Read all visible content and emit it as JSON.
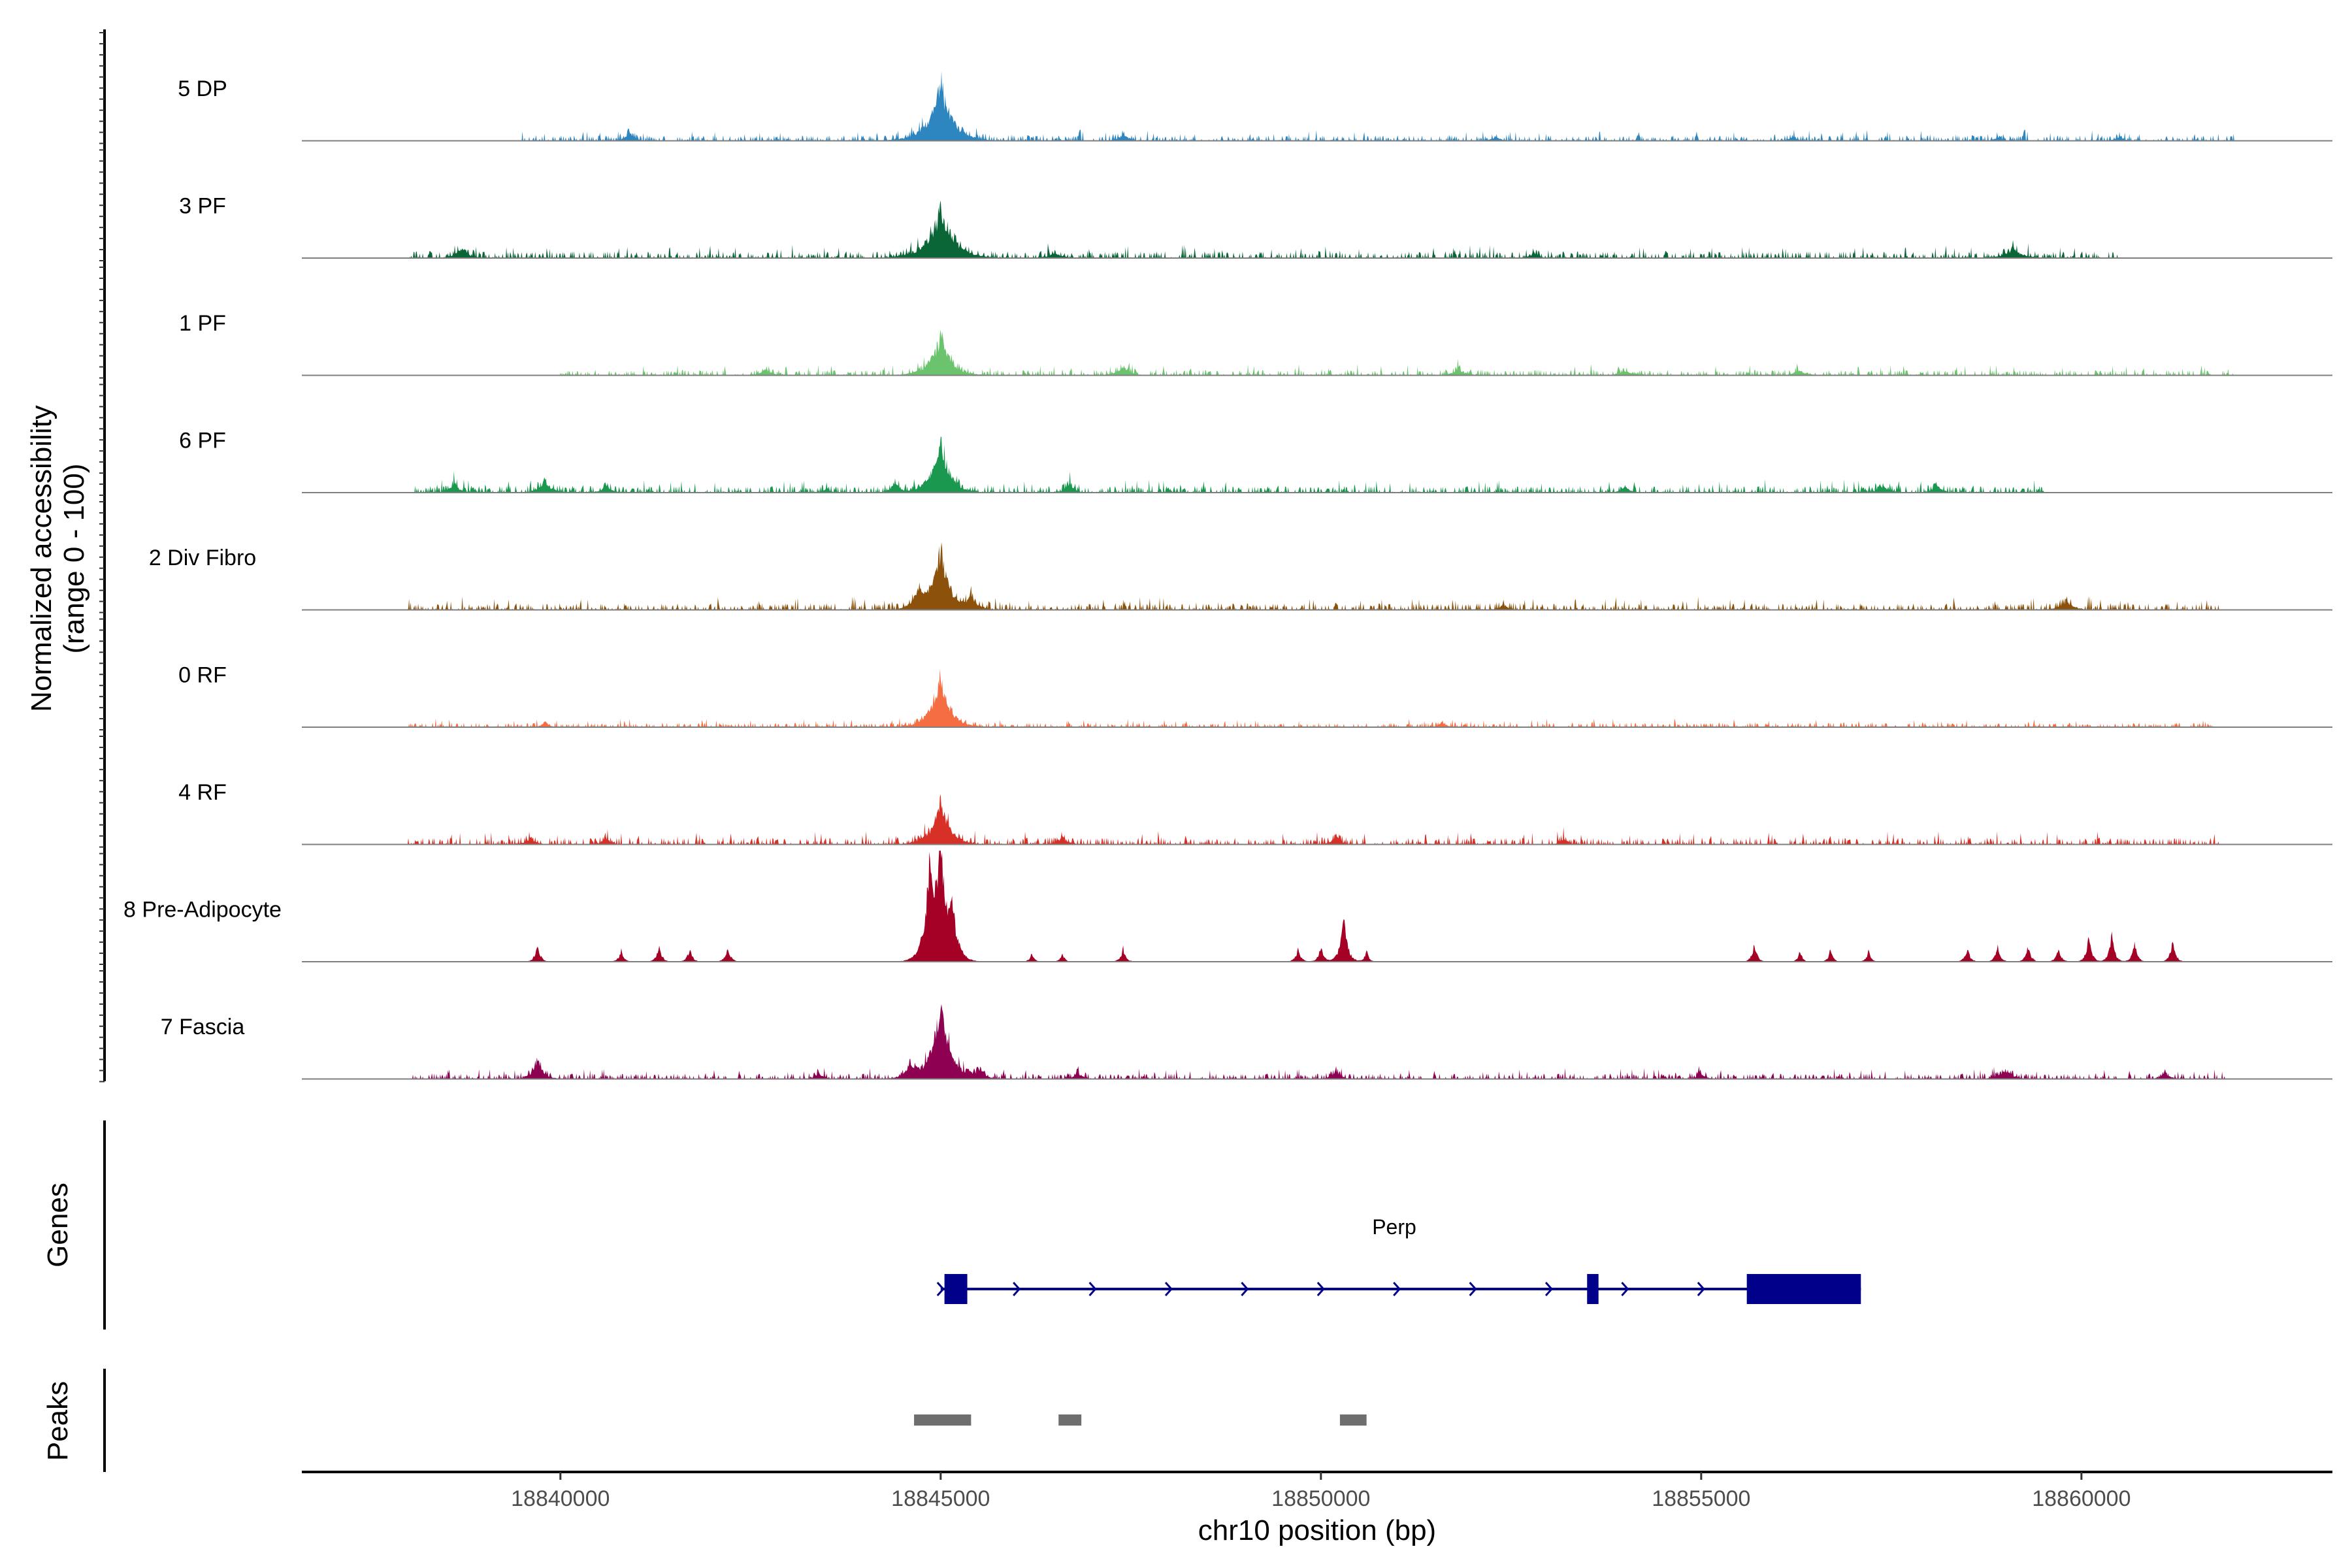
{
  "chart_data": {
    "type": "area",
    "title": "",
    "ylabel": "Normalized accessibility\n(range 0 - 100)",
    "xlabel": "chr10 position (bp)",
    "xlim": [
      18836600,
      18863300
    ],
    "ylim": [
      0,
      100
    ],
    "x_ticks": [
      18840000,
      18845000,
      18850000,
      18855000,
      18860000
    ],
    "x_tick_labels": [
      "18840000",
      "18845000",
      "18850000",
      "18855000",
      "18860000"
    ],
    "tracks": [
      {
        "name": "5 DP",
        "color": "#2E86C1",
        "noise": 5,
        "noise_start": 18839500,
        "noise_end": 18862000,
        "peaks": [
          [
            18845000,
            50,
            250
          ],
          [
            18840900,
            8,
            100
          ],
          [
            18847400,
            6,
            120
          ],
          [
            18852300,
            4,
            100
          ],
          [
            18856200,
            4,
            100
          ],
          [
            18858900,
            3,
            100
          ],
          [
            18860500,
            4,
            100
          ]
        ]
      },
      {
        "name": "3 PF",
        "color": "#0A6637",
        "noise": 6,
        "noise_start": 18838000,
        "noise_end": 18860500,
        "peaks": [
          [
            18845000,
            42,
            280
          ],
          [
            18838700,
            8,
            150
          ],
          [
            18846500,
            5,
            150
          ],
          [
            18852800,
            5,
            100
          ],
          [
            18859100,
            8,
            200
          ]
        ]
      },
      {
        "name": "1 PF",
        "color": "#6BC46D",
        "noise": 5,
        "noise_start": 18840000,
        "noise_end": 18862000,
        "peaks": [
          [
            18845000,
            34,
            220
          ],
          [
            18842700,
            6,
            120
          ],
          [
            18847400,
            8,
            150
          ],
          [
            18851800,
            5,
            150
          ],
          [
            18854000,
            4,
            150
          ],
          [
            18856300,
            4,
            150
          ]
        ]
      },
      {
        "name": "6 PF",
        "color": "#1A9850",
        "noise": 6,
        "noise_start": 18838000,
        "noise_end": 18859500,
        "peaks": [
          [
            18845000,
            45,
            200
          ],
          [
            18844400,
            10,
            90
          ],
          [
            18838600,
            8,
            120
          ],
          [
            18839800,
            10,
            150
          ],
          [
            18840600,
            6,
            120
          ],
          [
            18843500,
            4,
            80
          ],
          [
            18846700,
            8,
            100
          ],
          [
            18854000,
            6,
            100
          ],
          [
            18857400,
            6,
            130
          ],
          [
            18858100,
            8,
            100
          ]
        ]
      },
      {
        "name": "2 Div Fibro",
        "color": "#8C510A",
        "noise": 6,
        "noise_start": 18838000,
        "noise_end": 18861800,
        "peaks": [
          [
            18845000,
            55,
            180
          ],
          [
            18844700,
            18,
            120
          ],
          [
            18845400,
            10,
            150
          ],
          [
            18852400,
            6,
            90
          ],
          [
            18859800,
            8,
            150
          ]
        ]
      },
      {
        "name": "0 RF",
        "color": "#F46D43",
        "noise": 4,
        "noise_start": 18838000,
        "noise_end": 18861800,
        "peaks": [
          [
            18845000,
            46,
            200
          ],
          [
            18839800,
            5,
            80
          ],
          [
            18851600,
            5,
            80
          ]
        ]
      },
      {
        "name": "4 RF",
        "color": "#D73027",
        "noise": 6,
        "noise_start": 18838000,
        "noise_end": 18861800,
        "peaks": [
          [
            18845000,
            38,
            200
          ],
          [
            18839600,
            6,
            120
          ],
          [
            18840600,
            6,
            100
          ],
          [
            18846600,
            7,
            120
          ],
          [
            18850200,
            8,
            100
          ],
          [
            18853200,
            5,
            100
          ]
        ]
      },
      {
        "name": "8 Pre-Adipocyte",
        "color": "#A50026",
        "noise": 0,
        "noise_start": 18838000,
        "noise_end": 18861800,
        "peaks": [
          [
            18845000,
            100,
            120
          ],
          [
            18844850,
            70,
            120
          ],
          [
            18845150,
            40,
            120
          ],
          [
            18839700,
            16,
            60
          ],
          [
            18840800,
            10,
            60
          ],
          [
            18841300,
            14,
            60
          ],
          [
            18841700,
            12,
            60
          ],
          [
            18842200,
            14,
            60
          ],
          [
            18846200,
            8,
            50
          ],
          [
            18846600,
            8,
            50
          ],
          [
            18847400,
            12,
            60
          ],
          [
            18849700,
            12,
            60
          ],
          [
            18850000,
            14,
            60
          ],
          [
            18850300,
            40,
            80
          ],
          [
            18850600,
            10,
            50
          ],
          [
            18855700,
            16,
            60
          ],
          [
            18856300,
            10,
            50
          ],
          [
            18856700,
            12,
            50
          ],
          [
            18857200,
            10,
            50
          ],
          [
            18858500,
            12,
            60
          ],
          [
            18858900,
            14,
            60
          ],
          [
            18859300,
            14,
            60
          ],
          [
            18859700,
            12,
            60
          ],
          [
            18860100,
            24,
            60
          ],
          [
            18860400,
            26,
            60
          ],
          [
            18860700,
            16,
            60
          ],
          [
            18861200,
            20,
            60
          ]
        ]
      },
      {
        "name": "7 Fascia",
        "color": "#8E0152",
        "noise": 5,
        "noise_start": 18838000,
        "noise_end": 18861900,
        "peaks": [
          [
            18845000,
            65,
            200
          ],
          [
            18844600,
            12,
            120
          ],
          [
            18845500,
            8,
            120
          ],
          [
            18839700,
            18,
            120
          ],
          [
            18843400,
            6,
            100
          ],
          [
            18846800,
            6,
            100
          ],
          [
            18850200,
            8,
            100
          ],
          [
            18855000,
            5,
            100
          ],
          [
            18859000,
            8,
            150
          ],
          [
            18861100,
            6,
            100
          ]
        ]
      }
    ],
    "genes": {
      "panel_title": "Genes",
      "name": "Perp",
      "strand": "+",
      "color": "#00008B",
      "start": 18845000,
      "end": 18857100,
      "exons": [
        [
          18845050,
          18845350
        ],
        [
          18853500,
          18853650
        ],
        [
          18855600,
          18857100
        ]
      ],
      "arrow_positions": [
        18845000,
        18846000,
        18847000,
        18848000,
        18849000,
        18850000,
        18851000,
        18852000,
        18853000,
        18854000,
        18855000
      ]
    },
    "peaks": {
      "panel_title": "Peaks",
      "color": "#6E6E6E",
      "regions": [
        [
          18844650,
          18845400
        ],
        [
          18846550,
          18846850
        ],
        [
          18850250,
          18850600
        ]
      ]
    }
  }
}
